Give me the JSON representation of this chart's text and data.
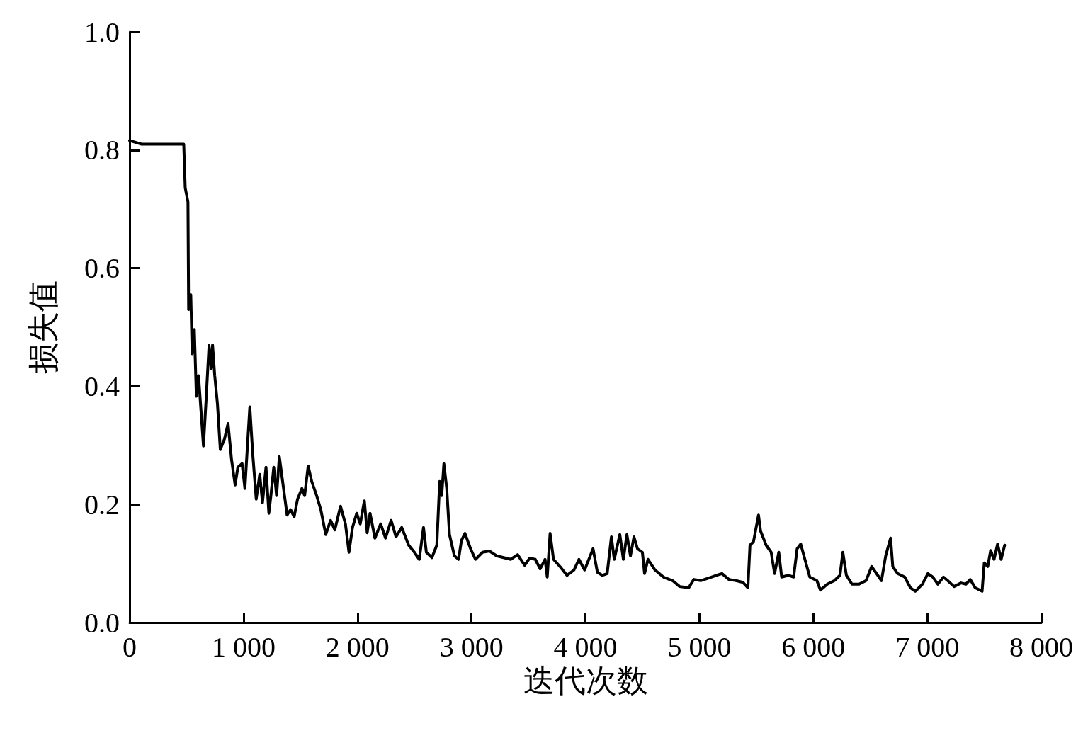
{
  "chart_data": {
    "type": "line",
    "xlabel": "迭代次数",
    "ylabel": "损失值",
    "xlim": [
      0,
      8000
    ],
    "ylim": [
      0,
      1
    ],
    "xticks": [
      0,
      {
        "value": 1000,
        "label": "1 000"
      },
      {
        "value": 2000,
        "label": "2 000"
      },
      {
        "value": 3000,
        "label": "3 000"
      },
      {
        "value": 4000,
        "label": "4 000"
      },
      {
        "value": 5000,
        "label": "5 000"
      },
      {
        "value": 6000,
        "label": "6 000"
      },
      {
        "value": 7000,
        "label": "7 000"
      },
      {
        "value": 8000,
        "label": "8 000"
      }
    ],
    "yticks": [
      {
        "value": 0,
        "label": "0.0"
      },
      0.2,
      0.4,
      0.6,
      0.8,
      {
        "value": 1,
        "label": "1.0"
      }
    ],
    "grid": false,
    "marker": "none",
    "line_style": "solid",
    "series": [
      {
        "color": "#000000",
        "x": [
          0,
          105,
          475,
          488,
          512,
          518,
          537,
          549,
          568,
          586,
          605,
          648,
          673,
          697,
          716,
          728,
          747,
          771,
          796,
          833,
          864,
          895,
          926,
          950,
          987,
          1012,
          1031,
          1055,
          1080,
          1111,
          1142,
          1166,
          1197,
          1222,
          1240,
          1265,
          1290,
          1314,
          1351,
          1382,
          1413,
          1444,
          1474,
          1512,
          1536,
          1567,
          1598,
          1641,
          1678,
          1721,
          1764,
          1801,
          1851,
          1894,
          1925,
          1956,
          1993,
          2024,
          2060,
          2085,
          2110,
          2153,
          2203,
          2246,
          2295,
          2338,
          2388,
          2449,
          2499,
          2542,
          2579,
          2604,
          2653,
          2696,
          2721,
          2739,
          2758,
          2783,
          2807,
          2850,
          2887,
          2912,
          2943,
          2992,
          3035,
          3097,
          3159,
          3220,
          3282,
          3344,
          3405,
          3467,
          3510,
          3560,
          3603,
          3646,
          3665,
          3690,
          3720,
          3776,
          3838,
          3900,
          3943,
          3993,
          4067,
          4105,
          4148,
          4191,
          4228,
          4253,
          4302,
          4333,
          4364,
          4395,
          4426,
          4457,
          4500,
          4519,
          4549,
          4611,
          4685,
          4765,
          4827,
          4907,
          4951,
          5012,
          5105,
          5198,
          5259,
          5321,
          5383,
          5426,
          5444,
          5475,
          5519,
          5537,
          5586,
          5630,
          5660,
          5697,
          5722,
          5784,
          5827,
          5858,
          5889,
          5926,
          5969,
          6031,
          6062,
          6123,
          6185,
          6234,
          6259,
          6290,
          6339,
          6401,
          6463,
          6512,
          6555,
          6598,
          6635,
          6678,
          6697,
          6740,
          6802,
          6852,
          6895,
          6957,
          7006,
          7049,
          7093,
          7142,
          7179,
          7235,
          7296,
          7339,
          7377,
          7420,
          7481,
          7500,
          7531,
          7556,
          7586,
          7617,
          7648,
          7679
        ],
        "values": [
          0.816,
          0.81,
          0.81,
          0.736,
          0.712,
          0.53,
          0.555,
          0.455,
          0.496,
          0.383,
          0.418,
          0.299,
          0.383,
          0.469,
          0.43,
          0.47,
          0.418,
          0.37,
          0.293,
          0.311,
          0.337,
          0.275,
          0.233,
          0.263,
          0.269,
          0.227,
          0.289,
          0.365,
          0.287,
          0.209,
          0.251,
          0.203,
          0.263,
          0.185,
          0.215,
          0.263,
          0.215,
          0.281,
          0.227,
          0.182,
          0.191,
          0.179,
          0.209,
          0.227,
          0.215,
          0.265,
          0.239,
          0.215,
          0.191,
          0.149,
          0.173,
          0.157,
          0.197,
          0.167,
          0.119,
          0.161,
          0.185,
          0.167,
          0.206,
          0.152,
          0.185,
          0.143,
          0.167,
          0.143,
          0.173,
          0.145,
          0.161,
          0.131,
          0.119,
          0.107,
          0.161,
          0.119,
          0.11,
          0.131,
          0.239,
          0.215,
          0.269,
          0.227,
          0.149,
          0.113,
          0.107,
          0.139,
          0.151,
          0.125,
          0.107,
          0.119,
          0.121,
          0.113,
          0.11,
          0.107,
          0.115,
          0.097,
          0.109,
          0.107,
          0.091,
          0.107,
          0.077,
          0.151,
          0.107,
          0.095,
          0.08,
          0.089,
          0.107,
          0.089,
          0.125,
          0.085,
          0.08,
          0.083,
          0.145,
          0.107,
          0.149,
          0.107,
          0.149,
          0.113,
          0.145,
          0.125,
          0.119,
          0.083,
          0.107,
          0.089,
          0.077,
          0.071,
          0.061,
          0.059,
          0.073,
          0.071,
          0.077,
          0.083,
          0.073,
          0.071,
          0.068,
          0.059,
          0.131,
          0.137,
          0.182,
          0.155,
          0.131,
          0.119,
          0.083,
          0.119,
          0.077,
          0.08,
          0.077,
          0.125,
          0.133,
          0.107,
          0.077,
          0.071,
          0.055,
          0.065,
          0.071,
          0.08,
          0.119,
          0.08,
          0.065,
          0.065,
          0.071,
          0.095,
          0.083,
          0.071,
          0.113,
          0.143,
          0.095,
          0.083,
          0.077,
          0.059,
          0.053,
          0.065,
          0.083,
          0.077,
          0.065,
          0.077,
          0.071,
          0.061,
          0.067,
          0.065,
          0.073,
          0.059,
          0.053,
          0.101,
          0.095,
          0.122,
          0.107,
          0.133,
          0.107,
          0.131
        ]
      }
    ]
  }
}
